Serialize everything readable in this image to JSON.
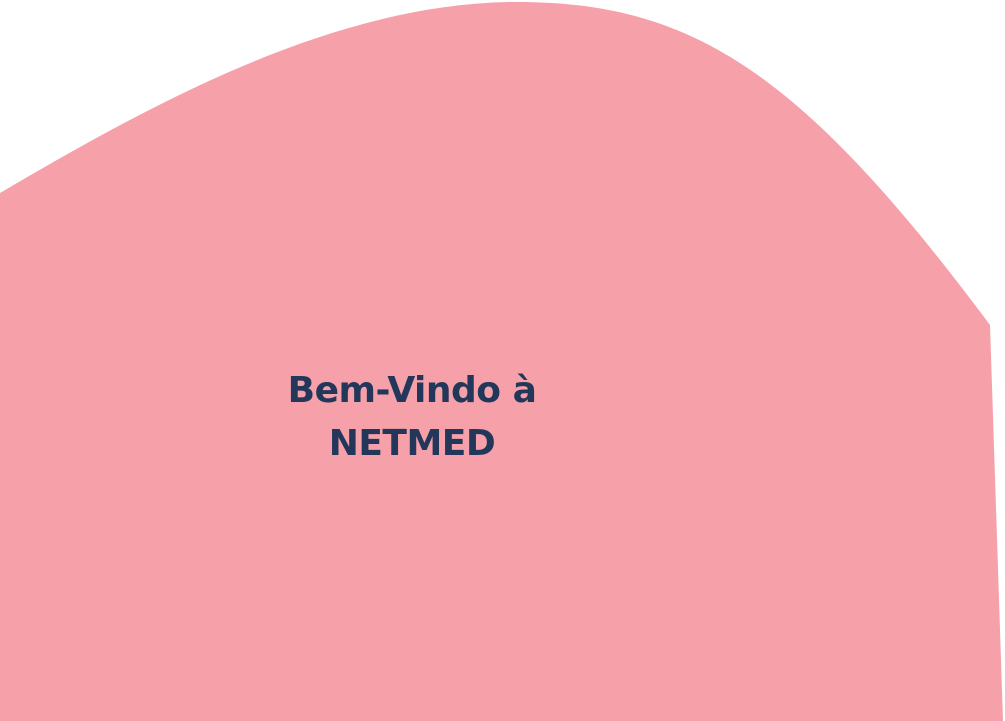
{
  "welcome": {
    "line1": "Bem-Vindo à",
    "line2": "NETMED"
  },
  "colors": {
    "background": "#ffffff",
    "blob": "#f6a0a9",
    "heading_text": "#22375a"
  }
}
